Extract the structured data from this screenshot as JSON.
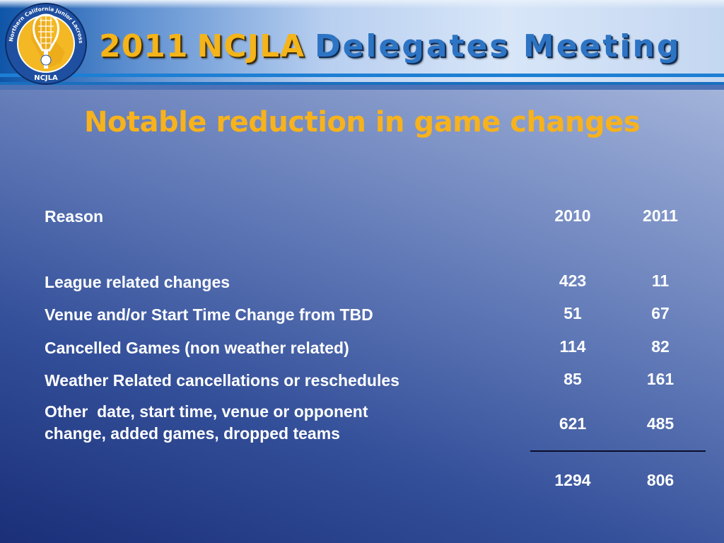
{
  "banner": {
    "title_year": "2011",
    "title_org": "NCJLA",
    "title_rest": "Delegates Meeting",
    "logo": {
      "ring_text": "Northern California Junior Lacrosse Association",
      "abbrev": "NCJLA",
      "icon": "lacrosse-stick-logo-icon"
    }
  },
  "slide": {
    "title": "Notable reduction in game changes"
  },
  "table": {
    "header": {
      "reason": "Reason",
      "col_2010": "2010",
      "col_2011": "2011"
    },
    "rows": [
      {
        "reason": "League related changes",
        "v2010": "423",
        "v2011": "11"
      },
      {
        "reason": "Venue and/or Start Time Change from TBD",
        "v2010": "51",
        "v2011": "67"
      },
      {
        "reason": "Cancelled Games (non weather related)",
        "v2010": "114",
        "v2011": "82"
      },
      {
        "reason": "Weather Related cancellations or reschedules",
        "v2010": "85",
        "v2011": "161"
      },
      {
        "reason_line1": "Other  date, start time, venue or opponent",
        "reason_line2": "change, added games, dropped teams",
        "v2010": "621",
        "v2011": "485"
      }
    ],
    "totals": {
      "v2010": "1294",
      "v2011": "806"
    }
  },
  "colors": {
    "title": "#f7b21c",
    "banner_gold": "#f4b41a",
    "banner_blue": "#2e74c4",
    "text": "#ffffff"
  }
}
